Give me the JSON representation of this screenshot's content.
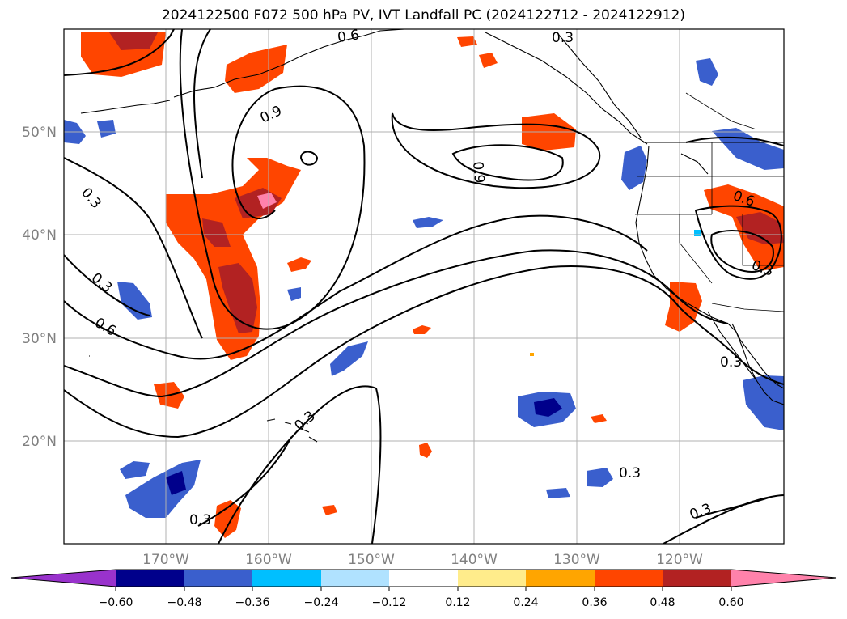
{
  "title": "2024122500 F072 500 hPa PV, IVT Landfall PC (2024122712 - 2024122912)",
  "map": {
    "lat_labels": [
      "50°N",
      "40°N",
      "30°N",
      "20°N"
    ],
    "lon_labels": [
      "170°W",
      "160°W",
      "150°W",
      "140°W",
      "130°W",
      "120°W"
    ],
    "contour_labels": [
      "0.6",
      "0.3",
      "0.9",
      "0.3",
      "0.9",
      "0.6",
      "0.3",
      "0.6",
      "0.3",
      "0.3",
      "0.3",
      "0.3",
      "0.3",
      "0.3"
    ],
    "colors": {
      "land_outline": "#000000",
      "grid": "#b0b0b0",
      "tick_label": "#808080"
    }
  },
  "colorbar": {
    "ticks": [
      "−0.60",
      "−0.48",
      "−0.36",
      "−0.24",
      "−0.12",
      "0.12",
      "0.24",
      "0.36",
      "0.48",
      "0.60"
    ],
    "colors": [
      "#9932cc",
      "#00008b",
      "#3a5fcd",
      "#00bfff",
      "#b0e2ff",
      "#ffffff",
      "#ffec8b",
      "#ffa500",
      "#ff4500",
      "#b22222",
      "#ff82ab"
    ]
  }
}
